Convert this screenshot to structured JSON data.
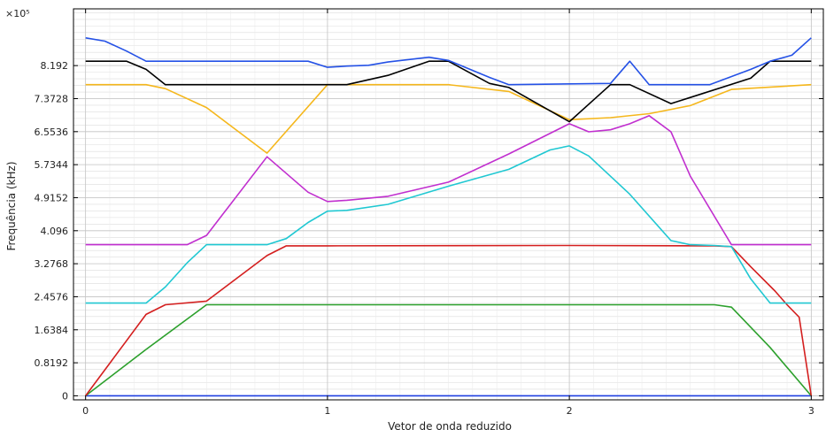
{
  "chart_data": {
    "type": "line",
    "xlabel": "Vetor de onda reduzido",
    "ylabel": "Frequência (kHz)",
    "y_multiplier": "×10⁵",
    "xlim": [
      -0.05,
      3.05
    ],
    "ylim": [
      -0.1,
      9.6
    ],
    "x_ticks": [
      0,
      1,
      2,
      3
    ],
    "x_tick_labels": [
      "0",
      "1",
      "2",
      "3"
    ],
    "y_ticks": [
      0,
      0.8192,
      1.6384,
      2.4576,
      3.2768,
      4.096,
      4.9152,
      5.7344,
      6.5536,
      7.3728,
      8.192
    ],
    "y_tick_labels": [
      "0",
      "0.8192",
      "1.6384",
      "2.4576",
      "3.2768",
      "4.096",
      "4.9152",
      "5.7344",
      "6.5536",
      "7.3728",
      "8.192"
    ],
    "grid": true,
    "series": [
      {
        "color": "#1f3fe0",
        "points": [
          [
            0,
            0
          ],
          [
            3,
            0
          ]
        ]
      },
      {
        "color": "#2ca02c",
        "points": [
          [
            0,
            0
          ],
          [
            0.25,
            1.15
          ],
          [
            0.5,
            2.26
          ],
          [
            1,
            2.26
          ],
          [
            2,
            2.26
          ],
          [
            2.6,
            2.26
          ],
          [
            2.67,
            2.2
          ],
          [
            2.83,
            1.2
          ],
          [
            3,
            0
          ]
        ]
      },
      {
        "color": "#d41f1f",
        "points": [
          [
            0,
            0
          ],
          [
            0.25,
            2.02
          ],
          [
            0.33,
            2.26
          ],
          [
            0.5,
            2.35
          ],
          [
            0.75,
            3.48
          ],
          [
            0.83,
            3.72
          ],
          [
            1,
            3.72
          ],
          [
            2,
            3.73
          ],
          [
            2.6,
            3.72
          ],
          [
            2.67,
            3.7
          ],
          [
            2.75,
            3.2
          ],
          [
            2.85,
            2.6
          ],
          [
            2.9,
            2.26
          ],
          [
            2.95,
            1.95
          ],
          [
            3,
            0
          ]
        ]
      },
      {
        "color": "#20c8d2",
        "points": [
          [
            0,
            2.3
          ],
          [
            0.25,
            2.3
          ],
          [
            0.33,
            2.7
          ],
          [
            0.42,
            3.3
          ],
          [
            0.5,
            3.75
          ],
          [
            0.75,
            3.75
          ],
          [
            0.83,
            3.9
          ],
          [
            0.92,
            4.3
          ],
          [
            1,
            4.58
          ],
          [
            1.08,
            4.6
          ],
          [
            1.25,
            4.75
          ],
          [
            1.5,
            5.2
          ],
          [
            1.75,
            5.62
          ],
          [
            1.92,
            6.1
          ],
          [
            2,
            6.2
          ],
          [
            2.08,
            5.95
          ],
          [
            2.25,
            5.0
          ],
          [
            2.42,
            3.85
          ],
          [
            2.5,
            3.75
          ],
          [
            2.6,
            3.73
          ],
          [
            2.67,
            3.7
          ],
          [
            2.75,
            2.9
          ],
          [
            2.83,
            2.3
          ],
          [
            3,
            2.3
          ]
        ]
      },
      {
        "color": "#c12fcf",
        "points": [
          [
            0,
            3.75
          ],
          [
            0.42,
            3.75
          ],
          [
            0.5,
            3.98
          ],
          [
            0.75,
            5.93
          ],
          [
            0.92,
            5.05
          ],
          [
            1,
            4.82
          ],
          [
            1.08,
            4.85
          ],
          [
            1.25,
            4.95
          ],
          [
            1.5,
            5.3
          ],
          [
            1.75,
            6.0
          ],
          [
            2,
            6.75
          ],
          [
            2.08,
            6.55
          ],
          [
            2.17,
            6.6
          ],
          [
            2.25,
            6.75
          ],
          [
            2.33,
            6.95
          ],
          [
            2.42,
            6.55
          ],
          [
            2.5,
            5.45
          ],
          [
            2.67,
            3.75
          ],
          [
            3,
            3.75
          ]
        ]
      },
      {
        "color": "#f5b71c",
        "points": [
          [
            0,
            7.72
          ],
          [
            0.25,
            7.72
          ],
          [
            0.33,
            7.62
          ],
          [
            0.5,
            7.15
          ],
          [
            0.75,
            6.02
          ],
          [
            1,
            7.72
          ],
          [
            1.5,
            7.72
          ],
          [
            1.75,
            7.55
          ],
          [
            2,
            6.85
          ],
          [
            2.17,
            6.9
          ],
          [
            2.33,
            7.0
          ],
          [
            2.5,
            7.2
          ],
          [
            2.67,
            7.6
          ],
          [
            3,
            7.72
          ]
        ]
      },
      {
        "color": "#000000",
        "points": [
          [
            0,
            8.3
          ],
          [
            0.17,
            8.3
          ],
          [
            0.25,
            8.1
          ],
          [
            0.33,
            7.72
          ],
          [
            1.08,
            7.72
          ],
          [
            1.25,
            7.95
          ],
          [
            1.42,
            8.3
          ],
          [
            1.5,
            8.3
          ],
          [
            1.67,
            7.75
          ],
          [
            1.75,
            7.65
          ],
          [
            2,
            6.8
          ],
          [
            2.17,
            7.72
          ],
          [
            2.25,
            7.72
          ],
          [
            2.42,
            7.25
          ],
          [
            2.5,
            7.4
          ],
          [
            2.75,
            7.88
          ],
          [
            2.83,
            8.3
          ],
          [
            3,
            8.3
          ]
        ]
      },
      {
        "color": "#2451e6",
        "points": [
          [
            0,
            8.88
          ],
          [
            0.08,
            8.8
          ],
          [
            0.17,
            8.55
          ],
          [
            0.25,
            8.3
          ],
          [
            0.92,
            8.3
          ],
          [
            1,
            8.15
          ],
          [
            1.08,
            8.18
          ],
          [
            1.17,
            8.2
          ],
          [
            1.25,
            8.28
          ],
          [
            1.42,
            8.4
          ],
          [
            1.5,
            8.32
          ],
          [
            1.67,
            7.9
          ],
          [
            1.75,
            7.72
          ],
          [
            2.17,
            7.75
          ],
          [
            2.25,
            8.3
          ],
          [
            2.33,
            7.72
          ],
          [
            2.58,
            7.72
          ],
          [
            2.75,
            8.1
          ],
          [
            2.83,
            8.3
          ],
          [
            2.92,
            8.45
          ],
          [
            3,
            8.88
          ]
        ]
      }
    ]
  }
}
